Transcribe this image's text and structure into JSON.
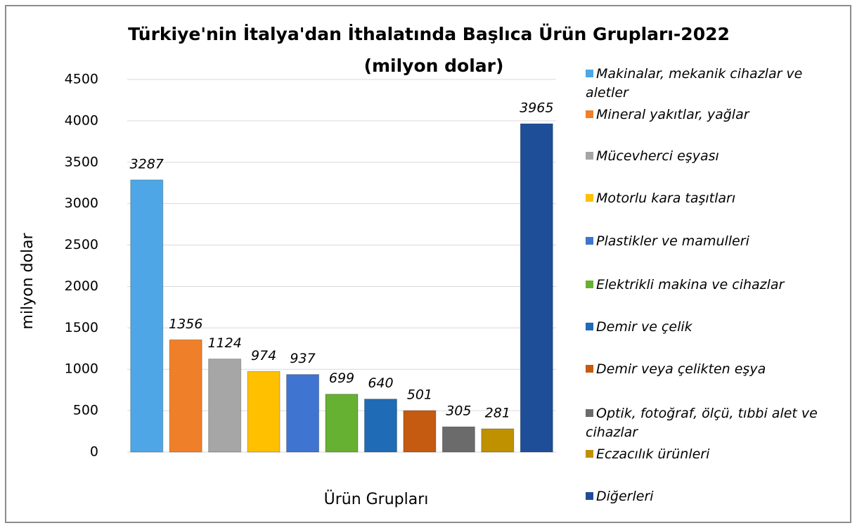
{
  "chart_data": {
    "type": "bar",
    "title": "Türkiye'nin İtalya'dan İthalatında Başlıca Ürün Grupları-2022",
    "subtitle": "(milyon dolar)",
    "xlabel": "Ürün Grupları",
    "ylabel": "milyon dolar",
    "ylim": [
      0,
      4500
    ],
    "yticks": [
      0,
      500,
      1000,
      1500,
      2000,
      2500,
      3000,
      3500,
      4000,
      4500
    ],
    "grid": true,
    "legend": "right",
    "series": [
      {
        "name": "Makinalar, mekanik cihazlar ve aletler",
        "color": "#4ea6e6",
        "values": [
          3287
        ]
      },
      {
        "name": "Mineral yakıtlar, yağlar",
        "color": "#f07f2a",
        "values": [
          1356
        ]
      },
      {
        "name": "Mücevherci eşyası",
        "color": "#a6a6a6",
        "values": [
          1124
        ]
      },
      {
        "name": "Motorlu kara taşıtları",
        "color": "#ffc000",
        "values": [
          974
        ]
      },
      {
        "name": "Plastikler ve mamulleri",
        "color": "#3f74d0",
        "values": [
          937
        ]
      },
      {
        "name": "Elektrikli makina ve cihazlar",
        "color": "#66b032",
        "values": [
          699
        ]
      },
      {
        "name": "Demir ve çelik",
        "color": "#1f6bb5",
        "values": [
          640
        ]
      },
      {
        "name": "Demir veya çelikten eşya",
        "color": "#c55a11",
        "values": [
          501
        ]
      },
      {
        "name": "Optik, fotoğraf, ölçü, tıbbi alet ve cihazlar",
        "color": "#6b6b6b",
        "values": [
          305
        ]
      },
      {
        "name": "Eczacılık ürünleri",
        "color": "#bf9000",
        "values": [
          281
        ]
      },
      {
        "name": "Diğerleri",
        "color": "#1f4e99",
        "values": [
          3965
        ]
      }
    ]
  }
}
